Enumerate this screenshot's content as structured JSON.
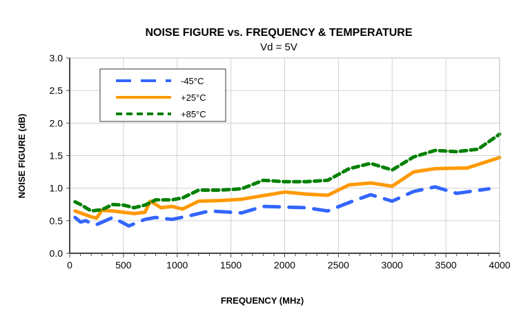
{
  "chart_data": {
    "type": "line",
    "title": "NOISE FIGURE vs. FREQUENCY & TEMPERATURE",
    "subtitle": "Vd = 5V",
    "xlabel": "FREQUENCY (MHz)",
    "ylabel": "NOISE FIGURE (dB)",
    "xlim": [
      0,
      4000
    ],
    "ylim": [
      0,
      3.0
    ],
    "xticks": [
      0,
      500,
      1000,
      1500,
      2000,
      2500,
      3000,
      3500,
      4000
    ],
    "yticks": [
      "0.0",
      "0.5",
      "1.0",
      "1.5",
      "2.0",
      "2.5",
      "3.0"
    ],
    "grid": true,
    "legend_position": "top-left",
    "series": [
      {
        "name": "-45°C",
        "color": "#3366ff",
        "style": "long-dash",
        "x": [
          50,
          100,
          150,
          200,
          250,
          400,
          550,
          700,
          800,
          950,
          1100,
          1300,
          1600,
          1800,
          2000,
          2200,
          2400,
          2600,
          2800,
          3000,
          3200,
          3400,
          3600,
          3900
        ],
        "y": [
          0.55,
          0.48,
          0.5,
          0.46,
          0.44,
          0.55,
          0.42,
          0.52,
          0.55,
          0.52,
          0.57,
          0.65,
          0.62,
          0.72,
          0.71,
          0.7,
          0.65,
          0.78,
          0.9,
          0.8,
          0.95,
          1.02,
          0.92,
          0.99
        ]
      },
      {
        "name": "+25°C",
        "color": "#ff9900",
        "style": "solid",
        "x": [
          50,
          100,
          200,
          250,
          300,
          400,
          600,
          700,
          750,
          850,
          950,
          1050,
          1200,
          1400,
          1600,
          2000,
          2200,
          2400,
          2600,
          2800,
          3000,
          3200,
          3400,
          3700,
          4000
        ],
        "y": [
          0.65,
          0.62,
          0.56,
          0.54,
          0.66,
          0.65,
          0.61,
          0.63,
          0.8,
          0.7,
          0.72,
          0.68,
          0.8,
          0.81,
          0.83,
          0.94,
          0.91,
          0.89,
          1.05,
          1.08,
          1.03,
          1.25,
          1.3,
          1.31,
          1.47
        ]
      },
      {
        "name": "+85°C",
        "color": "#008000",
        "style": "short-dash",
        "x": [
          50,
          100,
          200,
          300,
          400,
          500,
          600,
          700,
          800,
          950,
          1050,
          1200,
          1400,
          1600,
          1800,
          2000,
          2200,
          2400,
          2600,
          2800,
          3000,
          3200,
          3400,
          3600,
          3800,
          4000
        ],
        "y": [
          0.79,
          0.75,
          0.65,
          0.67,
          0.75,
          0.74,
          0.7,
          0.74,
          0.82,
          0.82,
          0.85,
          0.97,
          0.97,
          0.99,
          1.12,
          1.1,
          1.1,
          1.12,
          1.3,
          1.38,
          1.28,
          1.48,
          1.58,
          1.56,
          1.6,
          1.83
        ]
      }
    ]
  }
}
